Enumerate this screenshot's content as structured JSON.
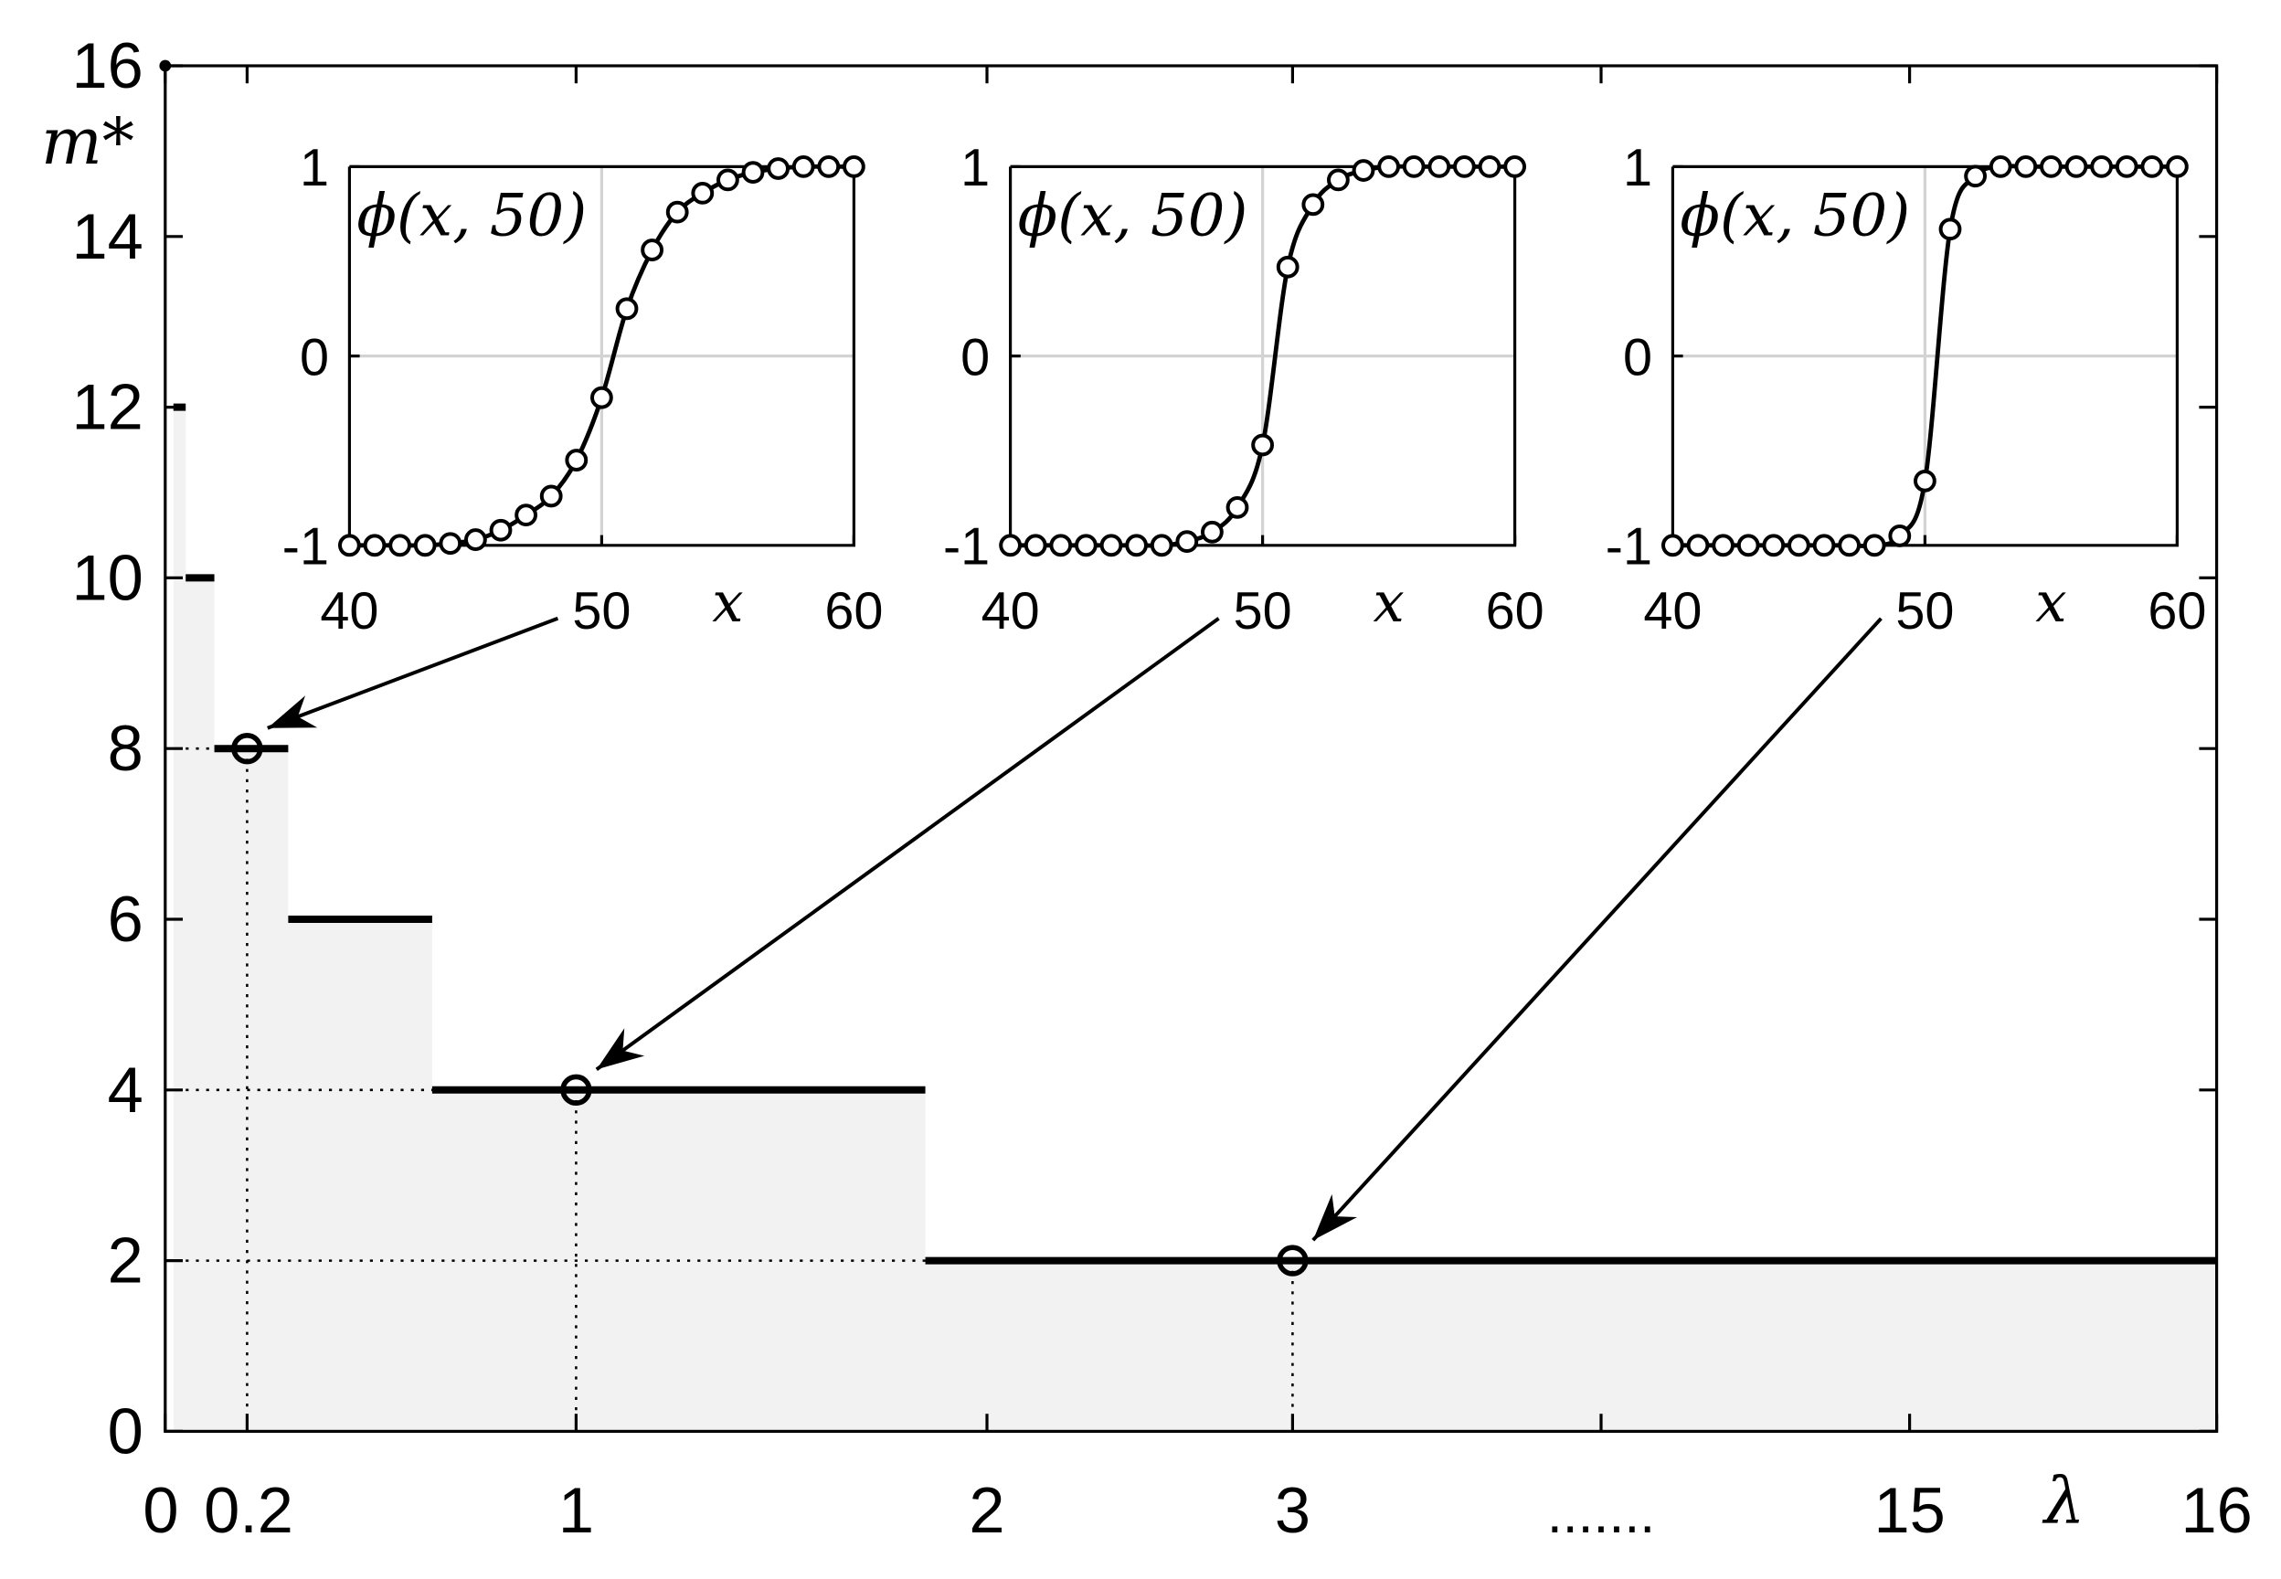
{
  "chart_data": [
    {
      "type": "step",
      "xlabel": "λ",
      "ylabel": "m*",
      "x_ticks": [
        "0",
        "0.2",
        "1",
        "2",
        "3",
        "15",
        "16"
      ],
      "x_ellipsis": ".......",
      "y_ticks": [
        "0",
        "2",
        "4",
        "6",
        "8",
        "10",
        "12",
        "14",
        "16"
      ],
      "ylim": [
        0,
        16
      ],
      "x_axis_note": "broken (non-uniform) λ axis between 3 and 15",
      "steps": [
        {
          "lambda_from": 0.0,
          "lambda_to": 0.0,
          "m": 16
        },
        {
          "lambda_from": 0.02,
          "lambda_to": 0.05,
          "m": 12
        },
        {
          "lambda_from": 0.05,
          "lambda_to": 0.12,
          "m": 10
        },
        {
          "lambda_from": 0.12,
          "lambda_to": 0.3,
          "m": 8
        },
        {
          "lambda_from": 0.3,
          "lambda_to": 0.65,
          "m": 6
        },
        {
          "lambda_from": 0.65,
          "lambda_to": 1.85,
          "m": 4
        },
        {
          "lambda_from": 1.85,
          "lambda_to": 16,
          "m": 2
        }
      ],
      "highlighted_points": [
        {
          "lambda": 0.2,
          "m": 8
        },
        {
          "lambda": 1,
          "m": 4
        },
        {
          "lambda": 3,
          "m": 2
        }
      ],
      "fill_color": "#f2f2f2",
      "line_color": "#000000"
    },
    {
      "type": "line",
      "inset": 1,
      "title": "ϕ(x, 50)",
      "xlabel": "x",
      "xlim": [
        40,
        60
      ],
      "ylim": [
        -1,
        1
      ],
      "x_ticks": [
        "40",
        "50",
        "60"
      ],
      "y_ticks": [
        "-1",
        "0",
        "1"
      ],
      "points_x": [
        40,
        41,
        42,
        43,
        44,
        45,
        46,
        47,
        48,
        49,
        50,
        51,
        52,
        53,
        54,
        55,
        56,
        57,
        58,
        59,
        60
      ],
      "points_y": [
        -1,
        -1,
        -1,
        -1,
        -0.99,
        -0.97,
        -0.92,
        -0.84,
        -0.74,
        -0.55,
        -0.22,
        0.25,
        0.56,
        0.76,
        0.86,
        0.93,
        0.97,
        0.99,
        1,
        1,
        1
      ]
    },
    {
      "type": "line",
      "inset": 2,
      "title": "ϕ(x, 50)",
      "xlabel": "x",
      "xlim": [
        40,
        60
      ],
      "ylim": [
        -1,
        1
      ],
      "x_ticks": [
        "40",
        "50",
        "60"
      ],
      "y_ticks": [
        "-1",
        "0",
        "1"
      ],
      "points_x": [
        40,
        41,
        42,
        43,
        44,
        45,
        46,
        47,
        48,
        49,
        50,
        51,
        52,
        53,
        54,
        55,
        56,
        57,
        58,
        59,
        60
      ],
      "points_y": [
        -1,
        -1,
        -1,
        -1,
        -1,
        -1,
        -1,
        -0.98,
        -0.93,
        -0.8,
        -0.47,
        0.47,
        0.8,
        0.93,
        0.98,
        1,
        1,
        1,
        1,
        1,
        1
      ]
    },
    {
      "type": "line",
      "inset": 3,
      "title": "ϕ(x, 50)",
      "xlabel": "x",
      "xlim": [
        40,
        60
      ],
      "ylim": [
        -1,
        1
      ],
      "x_ticks": [
        "40",
        "50",
        "60"
      ],
      "y_ticks": [
        "-1",
        "0",
        "1"
      ],
      "points_x": [
        40,
        41,
        42,
        43,
        44,
        45,
        46,
        47,
        48,
        49,
        50,
        51,
        52,
        53,
        54,
        55,
        56,
        57,
        58,
        59,
        60
      ],
      "points_y": [
        -1,
        -1,
        -1,
        -1,
        -1,
        -1,
        -1,
        -1,
        -1,
        -0.95,
        -0.66,
        0.67,
        0.95,
        1,
        1,
        1,
        1,
        1,
        1,
        1,
        1
      ]
    }
  ]
}
